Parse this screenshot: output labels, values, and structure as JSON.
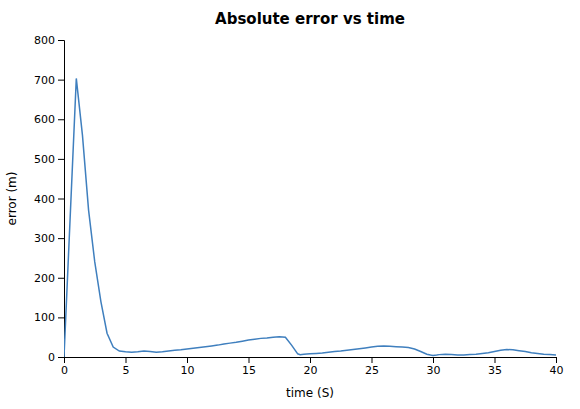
{
  "chart_data": {
    "type": "line",
    "title": "Absolute error vs time",
    "xlabel": "time (S)",
    "ylabel": "error (m)",
    "xlim": [
      0,
      40
    ],
    "ylim": [
      0,
      800
    ],
    "xticks": [
      0,
      5,
      10,
      15,
      20,
      25,
      30,
      35,
      40
    ],
    "yticks": [
      0,
      100,
      200,
      300,
      400,
      500,
      600,
      700,
      800
    ],
    "color": "#3f7fbe",
    "grid": false,
    "x": [
      0.0,
      1.0,
      1.5,
      2.0,
      2.5,
      3.0,
      3.5,
      4.0,
      4.5,
      5.0,
      5.5,
      6.0,
      6.5,
      7.0,
      7.5,
      8.0,
      8.5,
      9.0,
      9.5,
      10.0,
      10.5,
      11.0,
      11.5,
      12.0,
      12.5,
      13.0,
      13.5,
      14.0,
      14.5,
      15.0,
      15.5,
      16.0,
      16.5,
      17.0,
      17.5,
      18.0,
      18.5,
      19.0,
      19.2,
      19.5,
      20.0,
      20.5,
      21.0,
      21.5,
      22.0,
      22.5,
      23.0,
      23.5,
      24.0,
      24.5,
      25.0,
      25.5,
      26.0,
      26.5,
      27.0,
      27.5,
      28.0,
      28.5,
      29.0,
      29.5,
      29.8,
      30.0,
      30.3,
      30.5,
      31.0,
      31.5,
      32.0,
      32.5,
      33.0,
      33.5,
      34.0,
      34.5,
      35.0,
      35.5,
      36.0,
      36.5,
      37.0,
      37.5,
      38.0,
      38.5,
      39.0,
      39.5,
      40.0
    ],
    "values": [
      0.0,
      703.0,
      560.0,
      370.0,
      240.0,
      140.0,
      60.0,
      25.0,
      15.0,
      13.0,
      12.0,
      13.0,
      15.0,
      14.0,
      12.0,
      13.0,
      15.0,
      17.0,
      18.0,
      20.0,
      22.0,
      24.0,
      26.0,
      28.0,
      30.0,
      33.0,
      35.0,
      37.0,
      40.0,
      43.0,
      45.0,
      47.0,
      48.0,
      50.0,
      51.0,
      50.0,
      30.0,
      8.0,
      6.0,
      7.0,
      8.0,
      9.0,
      10.0,
      12.0,
      14.0,
      15.0,
      17.0,
      19.0,
      21.0,
      23.0,
      25.0,
      27.0,
      28.0,
      27.0,
      26.0,
      25.0,
      24.0,
      20.0,
      14.0,
      7.0,
      5.0,
      4.0,
      5.0,
      6.0,
      7.0,
      6.0,
      5.0,
      5.0,
      6.0,
      7.0,
      9.0,
      11.0,
      14.0,
      17.0,
      19.0,
      18.0,
      16.0,
      14.0,
      11.0,
      9.0,
      7.0,
      6.0,
      5.0
    ]
  }
}
